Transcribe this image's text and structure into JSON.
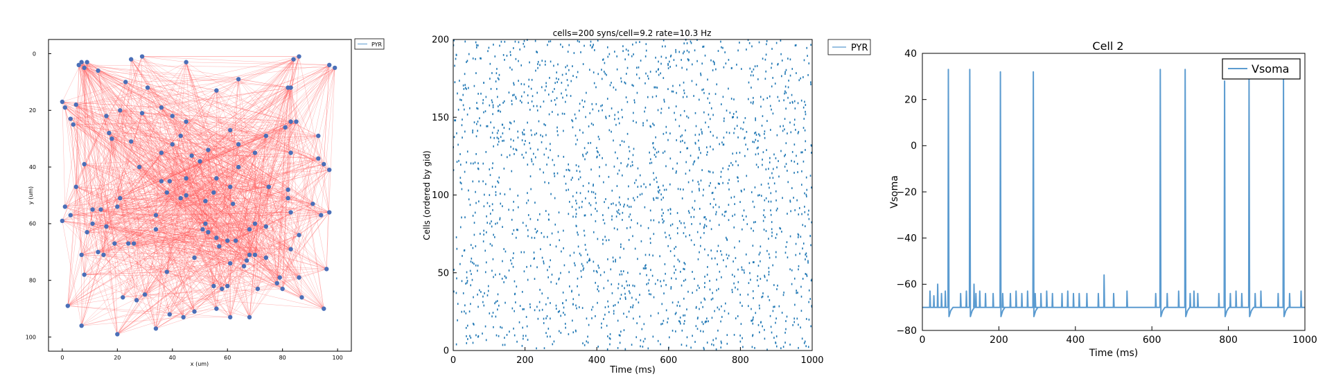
{
  "colors": {
    "connection": "#ff5555",
    "cell": "#4a6fb8",
    "spike": "#1f77b4",
    "trace": "#5b9bd0"
  },
  "chart_data": [
    {
      "type": "scatter",
      "title": "",
      "xlabel": "x (um)",
      "ylabel": "y (um)",
      "xlim": [
        -5,
        105
      ],
      "ylim": [
        -5,
        105
      ],
      "y_inverted": true,
      "xticks": [
        "0",
        "20",
        "40",
        "60",
        "80",
        "100"
      ],
      "yticks": [
        "0",
        "20",
        "40",
        "60",
        "80",
        "100"
      ],
      "legend": {
        "placement": "outside-top-right",
        "entries": [
          "PYR"
        ]
      },
      "connections": "dense recurrent synaptic connections drawn as thin red lines between cells",
      "series": [
        {
          "name": "PYR",
          "x": [
            29,
            7,
            25,
            6,
            8,
            9,
            86,
            97,
            84,
            45,
            13,
            64,
            82,
            83,
            99,
            23,
            31,
            5,
            0,
            1,
            56,
            36,
            16,
            29,
            40,
            45,
            21,
            83,
            81,
            3,
            4,
            85,
            61,
            43,
            74,
            93,
            17,
            18,
            25,
            40,
            64,
            53,
            70,
            36,
            47,
            83,
            93,
            95,
            50,
            97,
            64,
            8,
            28,
            45,
            56,
            36,
            55,
            39,
            61,
            75,
            82,
            5,
            38,
            43,
            75,
            21,
            45,
            52,
            82,
            62,
            91,
            20,
            11,
            1,
            83,
            3,
            94,
            0,
            14,
            97,
            34,
            52,
            70,
            11,
            16,
            51,
            74,
            34,
            53,
            86,
            68,
            9,
            56,
            60,
            63,
            26,
            19,
            57,
            24,
            83,
            13,
            70,
            68,
            7,
            48,
            74,
            15,
            67,
            61,
            66,
            96,
            8,
            38,
            86,
            79,
            78,
            60,
            55,
            58,
            71,
            80,
            87,
            22,
            30,
            27,
            2,
            95,
            56,
            48,
            61,
            39,
            68,
            44,
            34,
            7,
            20
          ],
          "y": [
            1,
            3,
            2,
            4,
            5,
            3,
            1,
            4,
            2,
            3,
            6,
            9,
            12,
            12,
            5,
            10,
            12,
            18,
            17,
            19,
            13,
            19,
            22,
            21,
            22,
            24,
            20,
            24,
            26,
            23,
            25,
            24,
            27,
            29,
            29,
            29,
            28,
            30,
            31,
            32,
            32,
            34,
            35,
            35,
            36,
            35,
            37,
            39,
            38,
            41,
            40,
            39,
            40,
            44,
            44,
            45,
            49,
            45,
            47,
            47,
            48,
            47,
            49,
            51,
            47,
            51,
            50,
            52,
            51,
            53,
            53,
            54,
            55,
            54,
            56,
            57,
            57,
            59,
            55,
            56,
            57,
            60,
            60,
            60,
            61,
            62,
            61,
            62,
            63,
            64,
            62,
            63,
            65,
            66,
            66,
            67,
            67,
            68,
            67,
            69,
            70,
            71,
            71,
            71,
            72,
            72,
            71,
            73,
            74,
            75,
            76,
            78,
            77,
            79,
            79,
            81,
            82,
            82,
            83,
            83,
            83,
            86,
            86,
            85,
            87,
            89,
            90,
            90,
            91,
            93,
            92,
            93,
            93,
            97,
            96,
            99
          ]
        }
      ]
    },
    {
      "type": "scatter",
      "title": "cells=200 syns/cell=9.2 rate=10.3 Hz",
      "xlabel": "Time (ms)",
      "ylabel": "Cells (ordered by gid)",
      "xlim": [
        0,
        1000
      ],
      "ylim": [
        0,
        200
      ],
      "xticks": [
        "0",
        "200",
        "400",
        "600",
        "800",
        "1000"
      ],
      "yticks": [
        "0",
        "50",
        "100",
        "150",
        "200"
      ],
      "legend": {
        "placement": "outside-top-right",
        "entries": [
          "PYR"
        ]
      },
      "raster": {
        "cells": 200,
        "rate_hz": 10.3,
        "duration_ms": 1000,
        "description": "spike raster, about 2000 spikes spread uniformly over all cells"
      }
    },
    {
      "type": "line",
      "title": "Cell 2",
      "xlabel": "Time (ms)",
      "ylabel": "Vsoma",
      "xlim": [
        0,
        1000
      ],
      "ylim": [
        -80,
        40
      ],
      "xticks": [
        "0",
        "200",
        "400",
        "600",
        "800",
        "1000"
      ],
      "yticks": [
        "40",
        "20",
        "0",
        "−20",
        "−40",
        "−60",
        "−80"
      ],
      "legend": {
        "placement": "top-right",
        "entries": [
          "Vsoma"
        ]
      },
      "series": [
        {
          "name": "Vsoma",
          "resting_mV": -70,
          "spike_times_ms": [
            68,
            124,
            204,
            290,
            622,
            687,
            790,
            854,
            944
          ],
          "spike_peaks_mV": [
            33,
            33,
            32,
            32,
            33,
            33,
            28,
            29,
            29
          ],
          "epsp_times_ms": [
            20,
            30,
            40,
            50,
            60,
            100,
            115,
            135,
            140,
            150,
            165,
            185,
            210,
            230,
            245,
            260,
            275,
            295,
            310,
            325,
            340,
            365,
            380,
            395,
            410,
            430,
            460,
            475,
            500,
            535,
            610,
            640,
            670,
            700,
            710,
            720,
            775,
            805,
            820,
            835,
            870,
            885,
            930,
            960,
            990
          ],
          "epsp_peaks_mV": [
            -63,
            -65,
            -60,
            -64,
            -63,
            -64,
            -63,
            -60,
            -64,
            -63,
            -64,
            -64,
            -64,
            -64,
            -63,
            -64,
            -63,
            -64,
            -64,
            -63,
            -64,
            -64,
            -63,
            -64,
            -64,
            -64,
            -64,
            -56,
            -64,
            -63,
            -64,
            -64,
            -63,
            -64,
            -63,
            -64,
            -64,
            -64,
            -63,
            -64,
            -64,
            -63,
            -64,
            -64,
            -63
          ]
        }
      ]
    }
  ]
}
